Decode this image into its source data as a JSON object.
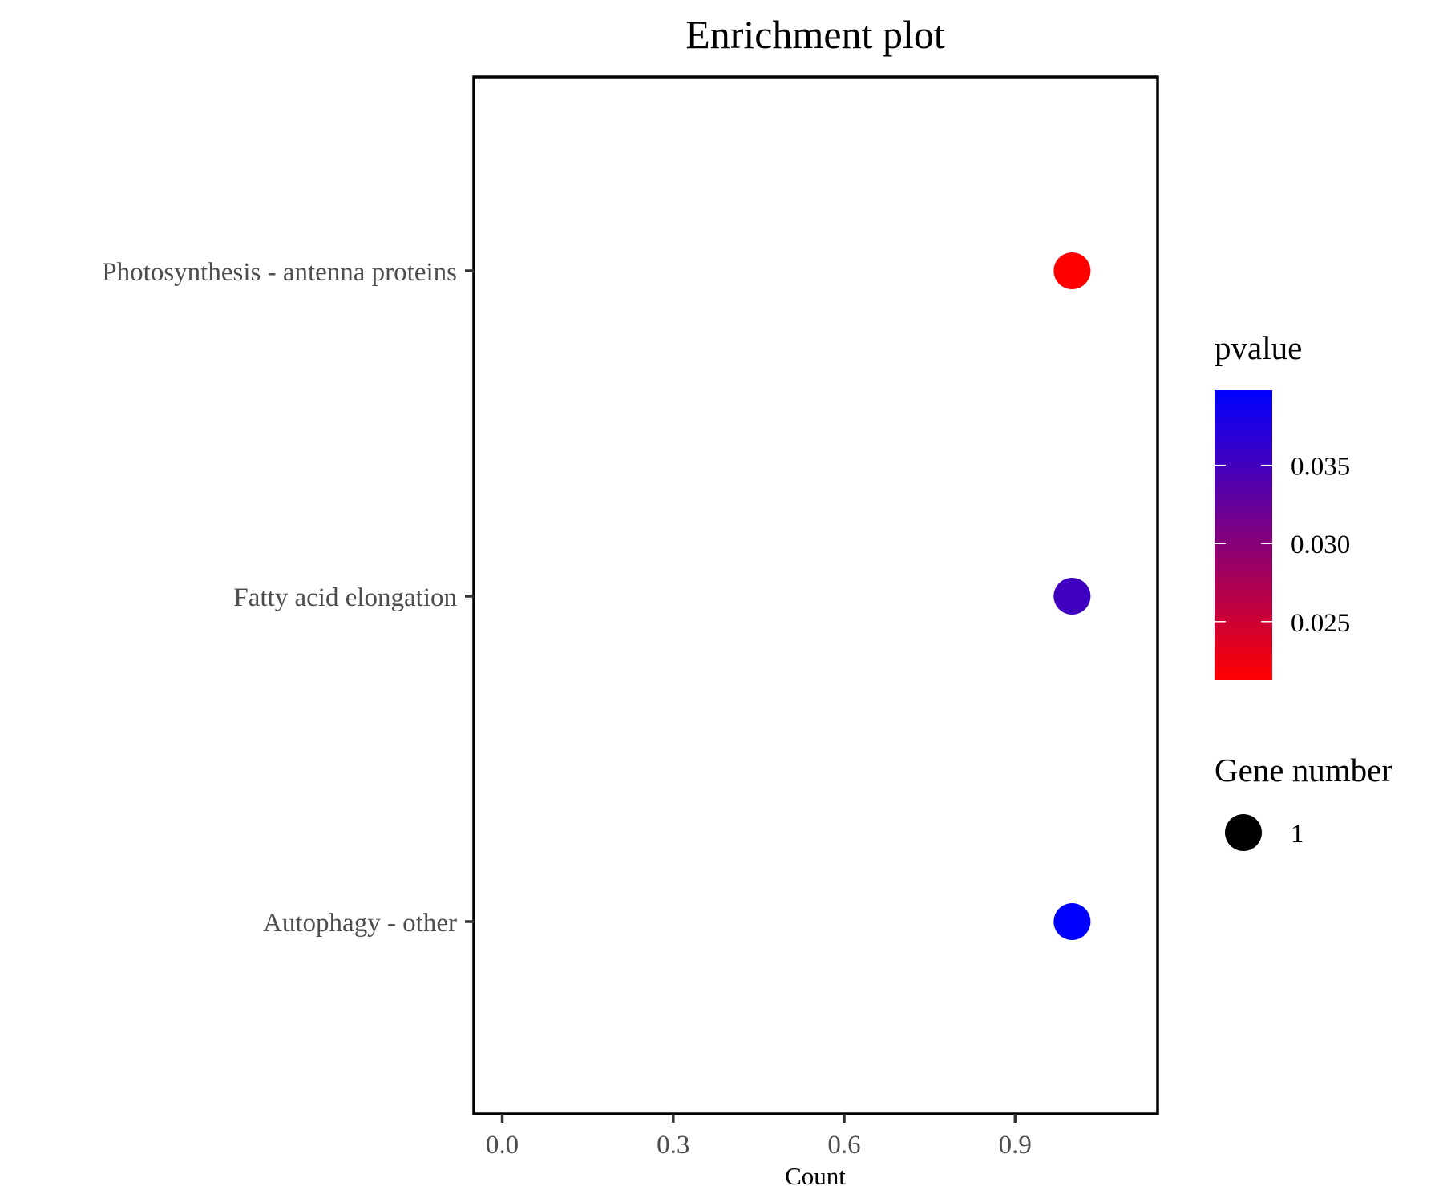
{
  "chart_data": {
    "type": "scatter",
    "title": "Enrichment plot",
    "xlabel": "Count",
    "ylabel": "",
    "xlim": [
      -0.05,
      1.15
    ],
    "x_ticks": [
      {
        "value": 0.0,
        "label": "0.0"
      },
      {
        "value": 0.3,
        "label": "0.3"
      },
      {
        "value": 0.6,
        "label": "0.6"
      },
      {
        "value": 0.9,
        "label": "0.9"
      }
    ],
    "categories": [
      "Photosynthesis - antenna proteins",
      "Fatty acid elongation",
      "Autophagy - other"
    ],
    "points": [
      {
        "category": "Photosynthesis - antenna proteins",
        "x": 1,
        "pvalue": 0.0213,
        "gene_number": 1
      },
      {
        "category": "Fatty acid elongation",
        "x": 1,
        "pvalue": 0.0352,
        "gene_number": 1
      },
      {
        "category": "Autophagy - other",
        "x": 1,
        "pvalue": 0.0398,
        "gene_number": 1
      }
    ],
    "color_legend": {
      "title": "pvalue",
      "low_color": "#ff0000",
      "high_color": "#0000ff",
      "range": [
        0.0213,
        0.0398
      ],
      "ticks": [
        {
          "value": 0.025,
          "label": "0.025"
        },
        {
          "value": 0.03,
          "label": "0.030"
        },
        {
          "value": 0.035,
          "label": "0.035"
        }
      ]
    },
    "size_legend": {
      "title": "Gene number",
      "items": [
        {
          "value": 1,
          "label": "1"
        }
      ]
    },
    "grid": false,
    "legend_position": "right"
  }
}
